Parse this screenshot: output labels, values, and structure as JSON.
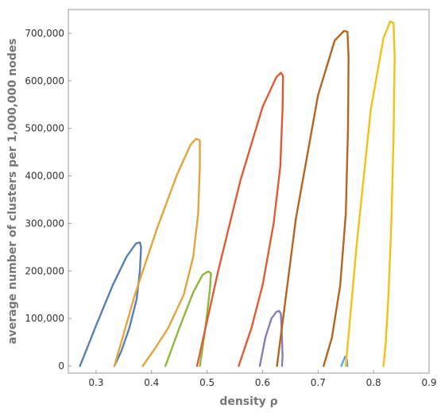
{
  "chart_data": {
    "type": "line",
    "title": "",
    "xlabel": "density ρ",
    "ylabel": "average number of clusters per 1,000,000 nodes",
    "xlim": [
      0.25,
      0.9
    ],
    "ylim": [
      -15000,
      750000
    ],
    "xticks": [
      0.3,
      0.4,
      0.5,
      0.6,
      0.7,
      0.8,
      0.9
    ],
    "xtick_labels": [
      "0.3",
      "0.4",
      "0.5",
      "0.6",
      "0.7",
      "0.8",
      "0.9"
    ],
    "yticks": [
      0,
      100000,
      200000,
      300000,
      400000,
      500000,
      600000,
      700000
    ],
    "ytick_labels": [
      "0",
      "100,000",
      "200,000",
      "300,000",
      "400,000",
      "500,000",
      "600,000",
      "700,000"
    ],
    "grid": false,
    "legend": "none",
    "series": [
      {
        "color": "#5a7fb5",
        "x": [
          0.271,
          0.3,
          0.33,
          0.355,
          0.372,
          0.379,
          0.381,
          0.379,
          0.373,
          0.36,
          0.345,
          0.333
        ],
        "y": [
          0,
          85000,
          170000,
          230000,
          258000,
          260000,
          250000,
          200000,
          140000,
          80000,
          30000,
          0
        ]
      },
      {
        "color": "#e3a53b",
        "x": [
          0.333,
          0.37,
          0.41,
          0.445,
          0.47,
          0.48,
          0.487,
          0.487,
          0.484,
          0.475,
          0.458,
          0.43,
          0.405,
          0.384
        ],
        "y": [
          0,
          150000,
          290000,
          400000,
          465000,
          478000,
          475000,
          420000,
          320000,
          230000,
          150000,
          80000,
          35000,
          0
        ]
      },
      {
        "color": "#8db83c",
        "x": [
          0.425,
          0.45,
          0.475,
          0.492,
          0.502,
          0.507,
          0.505,
          0.498,
          0.491,
          0.487
        ],
        "y": [
          0,
          80000,
          155000,
          192000,
          199000,
          195000,
          160000,
          90000,
          30000,
          0
        ]
      },
      {
        "color": "#e05b35",
        "x": [
          0.482,
          0.52,
          0.56,
          0.6,
          0.625,
          0.633,
          0.637,
          0.636,
          0.632,
          0.62,
          0.6,
          0.58,
          0.557
        ],
        "y": [
          0,
          200000,
          390000,
          545000,
          608000,
          617000,
          610000,
          540000,
          420000,
          300000,
          170000,
          80000,
          0
        ]
      },
      {
        "color": "#8a7cb9",
        "x": [
          0.595,
          0.605,
          0.616,
          0.625,
          0.63,
          0.633,
          0.635,
          0.636,
          0.635
        ],
        "y": [
          0,
          60000,
          100000,
          114000,
          116000,
          110000,
          60000,
          20000,
          0
        ]
      },
      {
        "color": "#b5651d",
        "x": [
          0.626,
          0.66,
          0.7,
          0.73,
          0.747,
          0.753,
          0.755,
          0.754,
          0.75,
          0.74,
          0.725,
          0.71
        ],
        "y": [
          0,
          310000,
          570000,
          685000,
          705000,
          703000,
          650000,
          500000,
          320000,
          170000,
          60000,
          0
        ]
      },
      {
        "color": "#5aa9e6",
        "x": [
          0.742,
          0.745,
          0.749,
          0.752,
          0.753
        ],
        "y": [
          0,
          9000,
          20000,
          13000,
          0
        ]
      },
      {
        "color": "#f2c113",
        "x": [
          0.75,
          0.77,
          0.795,
          0.818,
          0.83,
          0.836,
          0.838,
          0.836,
          0.832,
          0.827,
          0.822,
          0.818
        ],
        "y": [
          0,
          260000,
          540000,
          690000,
          725000,
          722000,
          650000,
          480000,
          300000,
          150000,
          50000,
          0
        ]
      }
    ]
  }
}
